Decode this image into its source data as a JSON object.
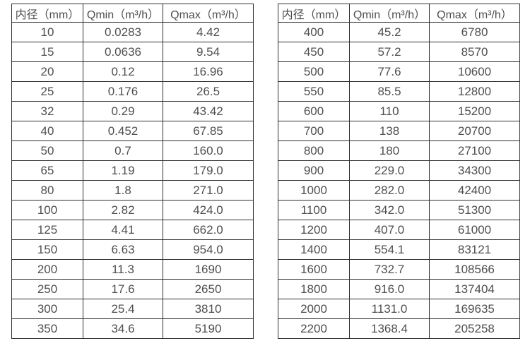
{
  "colors": {
    "background": "#ffffff",
    "border": "#2f2f2f",
    "text": "#4f4f4f"
  },
  "tables": [
    {
      "name": "flow-spec-small-diameters",
      "headers": [
        "内径（mm）",
        "Qmin（m³/h）",
        "Qmax（m³/h）"
      ],
      "rows": [
        [
          "10",
          "0.0283",
          "4.42"
        ],
        [
          "15",
          "0.0636",
          "9.54"
        ],
        [
          "20",
          "0.12",
          "16.96"
        ],
        [
          "25",
          "0.176",
          "26.5"
        ],
        [
          "32",
          "0.29",
          "43.42"
        ],
        [
          "40",
          "0.452",
          "67.85"
        ],
        [
          "50",
          "0.7",
          "160.0"
        ],
        [
          "65",
          "1.19",
          "179.0"
        ],
        [
          "80",
          "1.8",
          "271.0"
        ],
        [
          "100",
          "2.82",
          "424.0"
        ],
        [
          "125",
          "4.41",
          "662.0"
        ],
        [
          "150",
          "6.63",
          "954.0"
        ],
        [
          "200",
          "11.3",
          "1690"
        ],
        [
          "250",
          "17.6",
          "2650"
        ],
        [
          "300",
          "25.4",
          "3810"
        ],
        [
          "350",
          "34.6",
          "5190"
        ]
      ]
    },
    {
      "name": "flow-spec-large-diameters",
      "headers": [
        "内径（mm）",
        "Qmin（m³/h）",
        "Qmax（m³/h）"
      ],
      "rows": [
        [
          "400",
          "45.2",
          "6780"
        ],
        [
          "450",
          "57.2",
          "8570"
        ],
        [
          "500",
          "77.6",
          "10600"
        ],
        [
          "550",
          "85.5",
          "12800"
        ],
        [
          "600",
          "110",
          "15200"
        ],
        [
          "700",
          "138",
          "20700"
        ],
        [
          "800",
          "180",
          "27100"
        ],
        [
          "900",
          "229.0",
          "34300"
        ],
        [
          "1000",
          "282.0",
          "42400"
        ],
        [
          "1100",
          "342.0",
          "51300"
        ],
        [
          "1200",
          "407.0",
          "61000"
        ],
        [
          "1400",
          "554.1",
          "83121"
        ],
        [
          "1600",
          "732.7",
          "108566"
        ],
        [
          "1800",
          "916.0",
          "137404"
        ],
        [
          "2000",
          "1131.0",
          "169635"
        ],
        [
          "2200",
          "1368.4",
          "205258"
        ]
      ]
    }
  ]
}
